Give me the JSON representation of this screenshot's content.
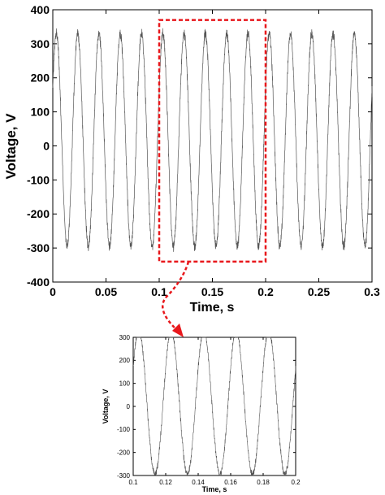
{
  "chart_data": [
    {
      "type": "line",
      "xlabel": "Time, s",
      "ylabel": "Voltage, V",
      "xlim": [
        0,
        0.3
      ],
      "ylim": [
        -400,
        400
      ],
      "x_ticks": [
        0,
        0.05,
        0.1,
        0.15,
        0.2,
        0.25,
        0.3
      ],
      "x_tick_labels": [
        "0",
        "0.05",
        "0.1",
        "0.15",
        "0.2",
        "0.25",
        "0.3"
      ],
      "y_ticks": [
        -400,
        -300,
        -200,
        -100,
        0,
        100,
        200,
        300,
        400
      ],
      "y_tick_labels": [
        "-400",
        "-300",
        "-200",
        "-100",
        "0",
        "100",
        "200",
        "300",
        "400"
      ],
      "grid": false,
      "series": [
        {
          "waveform": "sinusoid with switching ripple",
          "frequency_hz": 50,
          "peak_v": 330,
          "trough_v": -295,
          "x_range": [
            0,
            0.3
          ],
          "color": "#555555"
        }
      ],
      "annotation": {
        "type": "dashed-rectangle",
        "x_range": [
          0.1,
          0.2
        ],
        "y_range": [
          -340,
          370
        ],
        "color": "#e8181c"
      }
    },
    {
      "type": "line",
      "xlabel": "Time, s",
      "ylabel": "Voltage, V",
      "xlim": [
        0.1,
        0.2
      ],
      "ylim": [
        -300,
        300
      ],
      "x_ticks": [
        0.1,
        0.12,
        0.14,
        0.16,
        0.18,
        0.2
      ],
      "x_tick_labels": [
        "0.1",
        "0.12",
        "0.14",
        "0.16",
        "0.18",
        "0.2"
      ],
      "y_ticks": [
        -300,
        -200,
        -100,
        0,
        100,
        200,
        300
      ],
      "y_tick_labels": [
        "-300",
        "-200",
        "-100",
        "0",
        "100",
        "200",
        "300"
      ],
      "grid": false,
      "series": [
        {
          "waveform": "sinusoid with switching ripple",
          "frequency_hz": 50,
          "peak_v": 330,
          "trough_v": -295,
          "x_range": [
            0.1,
            0.2
          ],
          "color": "#555555"
        }
      ]
    }
  ],
  "connector": {
    "style": "dashed-arrow",
    "color": "#e8181c"
  }
}
